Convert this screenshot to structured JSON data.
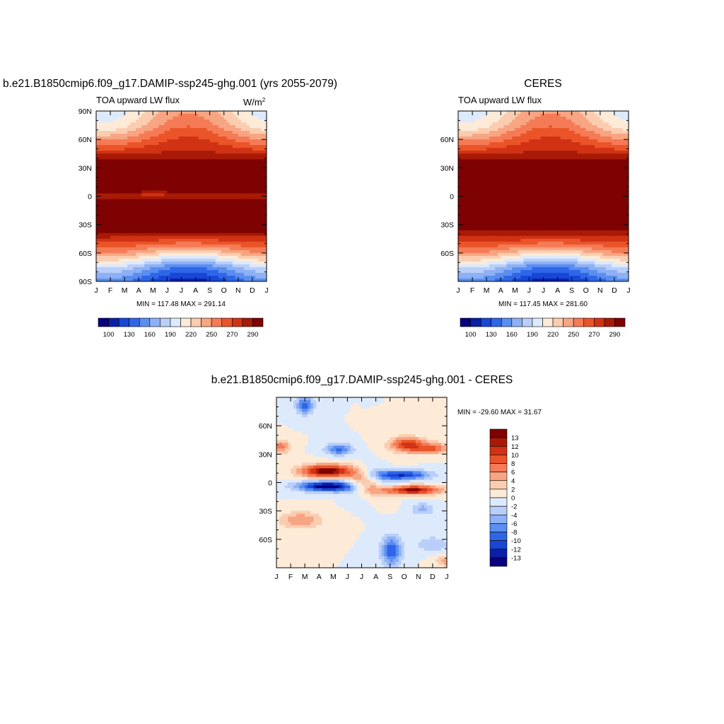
{
  "palette": [
    "#08007e",
    "#0a1fa8",
    "#1846d6",
    "#2f66e8",
    "#5a8ef0",
    "#8eb0f5",
    "#b9cffa",
    "#ddeafc",
    "#fdebd8",
    "#fbcdb0",
    "#f7a582",
    "#f57b56",
    "#ea5428",
    "#d13214",
    "#a81a06",
    "#7e0202"
  ],
  "months": [
    "J",
    "F",
    "M",
    "A",
    "M",
    "J",
    "J",
    "A",
    "S",
    "O",
    "N",
    "D",
    "J"
  ],
  "lat_labels_full": [
    "90N",
    "60N",
    "30N",
    "0",
    "30S",
    "60S",
    "90S"
  ],
  "lat_labels_inner": [
    "60N",
    "30N",
    "0",
    "30S",
    "60S"
  ],
  "panels": {
    "model": {
      "title": "b.e21.B1850cmip6.f09_g17.DAMIP-ssp245-ghg.001 (yrs 2055-2079)",
      "left_label": "TOA upward LW flux",
      "units_base": "W/m",
      "units_exp": "2",
      "minmax": "MIN = 117.48  MAX = 291.14",
      "colorbar_labels": [
        "100",
        "130",
        "160",
        "190",
        "220",
        "250",
        "270",
        "290"
      ]
    },
    "obs": {
      "title": "CERES",
      "left_label": "TOA upward LW flux",
      "minmax": "MIN = 117.45  MAX = 281.60",
      "colorbar_labels": [
        "100",
        "130",
        "160",
        "190",
        "220",
        "250",
        "270",
        "290"
      ]
    },
    "diff": {
      "title": "b.e21.B1850cmip6.f09_g17.DAMIP-ssp245-ghg.001 - CERES",
      "minmax": "MIN = -29.60  MAX =  31.67",
      "colorbar_labels": [
        "13",
        "12",
        "10",
        "8",
        "6",
        "4",
        "2",
        "0",
        "-2",
        "-4",
        "-6",
        "-8",
        "-10",
        "-12",
        "-13"
      ]
    }
  },
  "chart_data": [
    {
      "type": "heatmap",
      "title": "b.e21.B1850cmip6.f09_g17.DAMIP-ssp245-ghg.001 (yrs 2055-2079)",
      "subtitle": "TOA upward LW flux",
      "units": "W/m2",
      "x": "month of year (J to J)",
      "y": "latitude (90S to 90N)",
      "value_range": [
        117.48,
        291.14
      ],
      "levels": [
        100,
        110,
        120,
        130,
        140,
        150,
        160,
        170,
        180,
        190,
        200,
        210,
        220,
        230,
        240,
        250,
        260,
        270,
        280,
        290
      ],
      "zonal_profile_lat": [
        -90,
        -75,
        -60,
        -45,
        -30,
        -15,
        0,
        15,
        30,
        45,
        60,
        75,
        90
      ],
      "zonal_profile_value": [
        125,
        150,
        195,
        230,
        262,
        275,
        240,
        280,
        262,
        235,
        215,
        195,
        185
      ]
    },
    {
      "type": "heatmap",
      "title": "CERES",
      "subtitle": "TOA upward LW flux",
      "units": "W/m2",
      "value_range": [
        117.45,
        281.6
      ],
      "levels": [
        100,
        110,
        120,
        130,
        140,
        150,
        160,
        170,
        180,
        190,
        200,
        210,
        220,
        230,
        240,
        250,
        260,
        270,
        280,
        290
      ],
      "zonal_profile_lat": [
        -90,
        -75,
        -60,
        -45,
        -30,
        -15,
        0,
        15,
        30,
        45,
        60,
        75,
        90
      ],
      "zonal_profile_value": [
        125,
        150,
        195,
        230,
        258,
        268,
        245,
        262,
        258,
        235,
        215,
        195,
        185
      ]
    },
    {
      "type": "heatmap",
      "title": "b.e21.B1850cmip6.f09_g17.DAMIP-ssp245-ghg.001 - CERES",
      "units": "W/m2",
      "value_range": [
        -29.6,
        31.67
      ],
      "levels": [
        -13,
        -12,
        -10,
        -8,
        -6,
        -4,
        -2,
        0,
        2,
        4,
        6,
        8,
        10,
        12,
        13
      ],
      "features": [
        {
          "desc": "strong positive band",
          "lat": 10,
          "months": "Feb-May",
          "value": 14
        },
        {
          "desc": "strong negative band",
          "lat": -5,
          "months": "Feb-Jun",
          "value": -14
        },
        {
          "desc": "negative band",
          "lat": 8,
          "months": "Aug-Nov",
          "value": -11
        },
        {
          "desc": "positive band",
          "lat": -8,
          "months": "Aug-Nov",
          "value": 13
        },
        {
          "desc": "positive patch",
          "lat": 40,
          "months": "Sep-Oct",
          "value": 11
        },
        {
          "desc": "negative patch",
          "lat": 35,
          "months": "Apr-May",
          "value": -9
        },
        {
          "desc": "negative patch",
          "lat": -70,
          "months": "Sep-Oct",
          "value": -10
        }
      ]
    }
  ]
}
